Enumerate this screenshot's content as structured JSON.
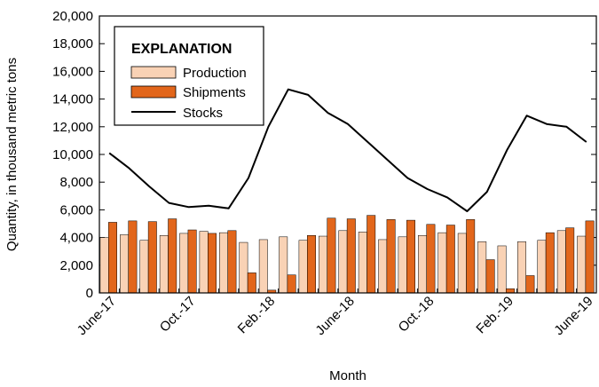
{
  "chart_data": {
    "type": "bar",
    "xlabel": "Month",
    "ylabel": "Quantity, in thousand metric tons",
    "ylim": [
      0,
      20000
    ],
    "yticks": [
      "0",
      "2,000",
      "4,000",
      "6,000",
      "8,000",
      "10,000",
      "12,000",
      "14,000",
      "16,000",
      "18,000",
      "20,000"
    ],
    "xtick_labels": [
      "June-17",
      "Oct.-17",
      "Feb.-18",
      "June-18",
      "Oct.-18",
      "Feb.-19",
      "June-19"
    ],
    "xtick_indices": [
      0,
      4,
      8,
      12,
      16,
      20,
      24
    ],
    "legend": {
      "title": "EXPLANATION",
      "position": "top-left",
      "items": [
        "Production",
        "Shipments",
        "Stocks"
      ]
    },
    "months": 25,
    "series": [
      {
        "name": "Production",
        "kind": "bar",
        "color": "#f9d2b5",
        "values": [
          4000,
          4200,
          3800,
          4150,
          4300,
          4450,
          4350,
          3650,
          3850,
          4050,
          3800,
          4100,
          4500,
          4400,
          3850,
          4050,
          4150,
          4350,
          4300,
          3700,
          3400,
          3700,
          3800,
          4500,
          4100
        ]
      },
      {
        "name": "Shipments",
        "kind": "bar",
        "color": "#e2661b",
        "values": [
          5100,
          5200,
          5150,
          5350,
          4550,
          4300,
          4500,
          1450,
          200,
          1300,
          4150,
          5400,
          5350,
          5600,
          5300,
          5250,
          4950,
          4900,
          5300,
          2400,
          300,
          1250,
          4350,
          4700,
          5200
        ]
      },
      {
        "name": "Stocks",
        "kind": "line",
        "color": "#000000",
        "values": [
          10100,
          9000,
          7700,
          6500,
          6200,
          6300,
          6100,
          8300,
          12000,
          14700,
          14300,
          13000,
          12200,
          10900,
          9600,
          8300,
          7500,
          6900,
          5900,
          7300,
          10300,
          12800,
          12200,
          12000,
          10900
        ]
      }
    ]
  }
}
